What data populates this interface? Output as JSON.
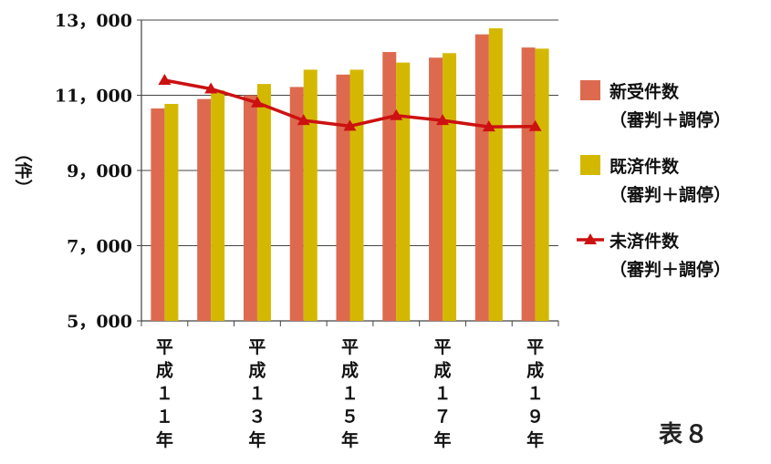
{
  "chart_data": {
    "type": "bar",
    "ylabel": "（件）",
    "ylim": [
      5000,
      13000
    ],
    "yticks": [
      "5，000",
      "7，000",
      "9，000",
      "11，000",
      "13，000"
    ],
    "ytick_values": [
      5000,
      7000,
      9000,
      11000,
      13000
    ],
    "categories": [
      "平成11年",
      "平成12年",
      "平成13年",
      "平成14年",
      "平成15年",
      "平成16年",
      "平成17年",
      "平成18年",
      "平成19年"
    ],
    "category_labels": [
      "平成１１年",
      "",
      "平成１３年",
      "",
      "平成１５年",
      "",
      "平成１７年",
      "",
      "平成１９年"
    ],
    "grid": true,
    "legend_position": "right",
    "series": [
      {
        "name": "新受件数（審判＋調停）",
        "name_line1": "新受件数",
        "name_line2": "（審判＋調停）",
        "type": "bar",
        "color": "#dd6a4e",
        "values": [
          10650,
          10900,
          11000,
          11220,
          11550,
          12150,
          12000,
          12620,
          12270
        ]
      },
      {
        "name": "既済件数（審判＋調停）",
        "name_line1": "既済件数",
        "name_line2": "（審判＋調停）",
        "type": "bar",
        "color": "#d4b800",
        "values": [
          10770,
          11130,
          11300,
          11680,
          11680,
          11870,
          12120,
          12780,
          12240
        ]
      },
      {
        "name": "未済件数（審判＋調停）",
        "name_line1": "未済件数",
        "name_line2": "（審判＋調停）",
        "type": "line",
        "color": "#cc1111",
        "values": [
          11400,
          11170,
          10800,
          10330,
          10180,
          10460,
          10330,
          10160,
          10170
        ]
      }
    ]
  },
  "caption": "表８"
}
